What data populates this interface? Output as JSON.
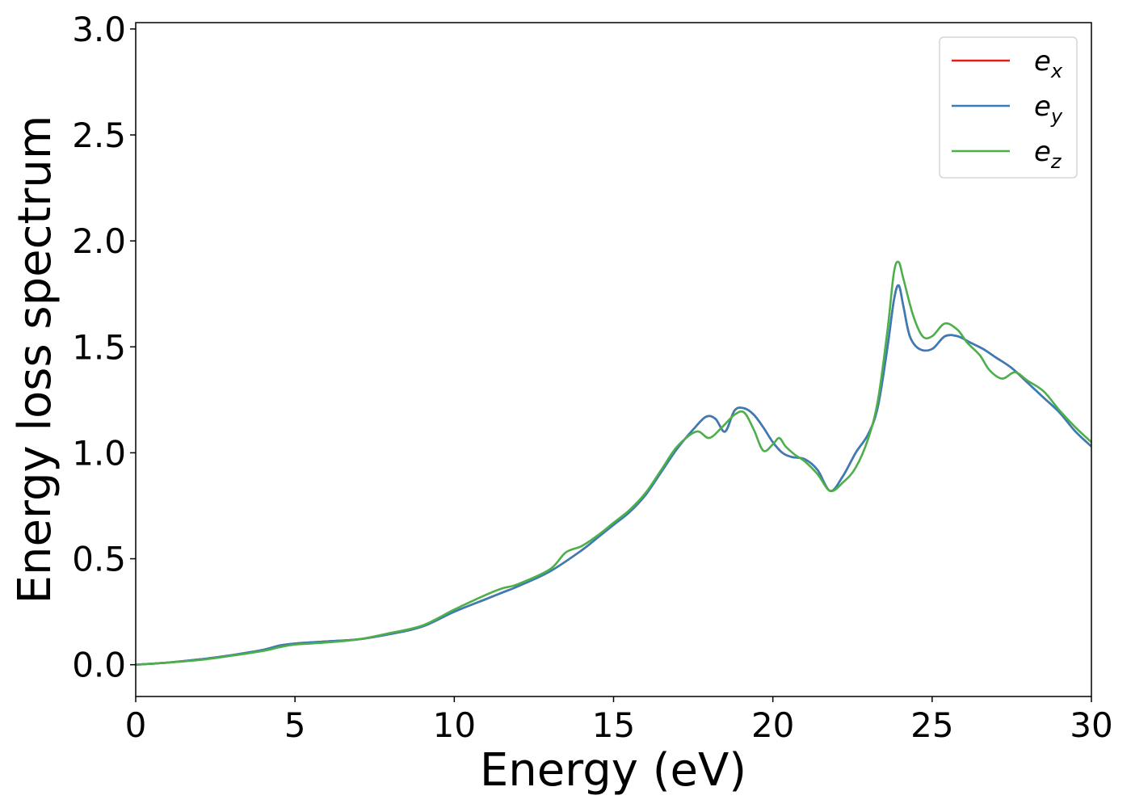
{
  "chart_data": {
    "type": "line",
    "title": "",
    "xlabel": "Energy (eV)",
    "ylabel": "Energy loss spectrum",
    "xlim": [
      0,
      30
    ],
    "ylim": [
      -0.15,
      3.03
    ],
    "xticks": [
      "0",
      "5",
      "10",
      "15",
      "20",
      "25",
      "30"
    ],
    "yticks": [
      "0.0",
      "0.5",
      "1.0",
      "1.5",
      "2.0",
      "2.5",
      "3.0"
    ],
    "grid": false,
    "legend_position": "top-right",
    "series": [
      {
        "name": "e_x",
        "legend": {
          "base": "e",
          "sub": "x"
        },
        "color": "#e41a1c",
        "x": [
          0,
          1,
          2,
          3,
          4,
          4.5,
          5,
          6,
          7,
          8,
          9,
          10,
          11,
          11.5,
          12,
          13,
          14,
          14.5,
          15,
          15.5,
          16,
          16.5,
          17,
          17.5,
          17.9,
          18.2,
          18.5,
          18.8,
          19.1,
          19.4,
          19.7,
          20,
          20.3,
          20.6,
          21,
          21.4,
          21.8,
          22.2,
          22.6,
          23,
          23.3,
          23.6,
          23.8,
          23.95,
          24.1,
          24.3,
          24.6,
          25,
          25.4,
          25.8,
          26.2,
          26.6,
          27,
          27.5,
          28,
          28.5,
          29,
          29.5,
          30
        ],
        "y": [
          0,
          0.01,
          0.025,
          0.045,
          0.07,
          0.09,
          0.1,
          0.11,
          0.12,
          0.145,
          0.18,
          0.25,
          0.31,
          0.34,
          0.37,
          0.44,
          0.54,
          0.6,
          0.66,
          0.72,
          0.8,
          0.91,
          1.02,
          1.11,
          1.17,
          1.16,
          1.1,
          1.2,
          1.21,
          1.18,
          1.12,
          1.05,
          1.0,
          0.98,
          0.97,
          0.92,
          0.82,
          0.89,
          1.0,
          1.09,
          1.22,
          1.5,
          1.72,
          1.79,
          1.69,
          1.55,
          1.49,
          1.49,
          1.55,
          1.55,
          1.52,
          1.49,
          1.45,
          1.4,
          1.33,
          1.26,
          1.19,
          1.1,
          1.03
        ]
      },
      {
        "name": "e_y",
        "legend": {
          "base": "e",
          "sub": "y"
        },
        "color": "#377eb8",
        "x": [
          0,
          1,
          2,
          3,
          4,
          4.5,
          5,
          6,
          7,
          8,
          9,
          10,
          11,
          11.5,
          12,
          13,
          14,
          14.5,
          15,
          15.5,
          16,
          16.5,
          17,
          17.5,
          17.9,
          18.2,
          18.5,
          18.8,
          19.1,
          19.4,
          19.7,
          20,
          20.3,
          20.6,
          21,
          21.4,
          21.8,
          22.2,
          22.6,
          23,
          23.3,
          23.6,
          23.8,
          23.95,
          24.1,
          24.3,
          24.6,
          25,
          25.4,
          25.8,
          26.2,
          26.6,
          27,
          27.5,
          28,
          28.5,
          29,
          29.5,
          30
        ],
        "y": [
          0,
          0.01,
          0.025,
          0.045,
          0.07,
          0.09,
          0.1,
          0.11,
          0.12,
          0.145,
          0.18,
          0.25,
          0.31,
          0.34,
          0.37,
          0.44,
          0.54,
          0.6,
          0.66,
          0.72,
          0.8,
          0.91,
          1.02,
          1.11,
          1.17,
          1.16,
          1.1,
          1.2,
          1.21,
          1.18,
          1.12,
          1.05,
          1.0,
          0.98,
          0.97,
          0.92,
          0.82,
          0.89,
          1.0,
          1.09,
          1.22,
          1.5,
          1.72,
          1.79,
          1.69,
          1.55,
          1.49,
          1.49,
          1.55,
          1.55,
          1.52,
          1.49,
          1.45,
          1.4,
          1.33,
          1.26,
          1.19,
          1.1,
          1.03
        ]
      },
      {
        "name": "e_z",
        "legend": {
          "base": "e",
          "sub": "z"
        },
        "color": "#4daf4a",
        "x": [
          0,
          1,
          2,
          3,
          4,
          4.5,
          5,
          6,
          7,
          8,
          9,
          10,
          11,
          11.5,
          12,
          13,
          13.5,
          14,
          14.5,
          15,
          15.5,
          16,
          16.5,
          17,
          17.6,
          18,
          18.4,
          18.8,
          19.1,
          19.4,
          19.7,
          20,
          20.2,
          20.4,
          20.7,
          21,
          21.4,
          21.8,
          22.2,
          22.6,
          23,
          23.3,
          23.6,
          23.8,
          23.95,
          24.1,
          24.4,
          24.7,
          25,
          25.4,
          25.8,
          26.1,
          26.5,
          26.8,
          27.2,
          27.6,
          28,
          28.5,
          29,
          29.5,
          30
        ],
        "y": [
          0,
          0.01,
          0.022,
          0.042,
          0.065,
          0.082,
          0.095,
          0.105,
          0.12,
          0.15,
          0.185,
          0.26,
          0.33,
          0.36,
          0.38,
          0.45,
          0.53,
          0.56,
          0.61,
          0.67,
          0.73,
          0.81,
          0.92,
          1.03,
          1.1,
          1.07,
          1.12,
          1.18,
          1.19,
          1.11,
          1.01,
          1.04,
          1.07,
          1.03,
          0.99,
          0.96,
          0.9,
          0.82,
          0.86,
          0.93,
          1.07,
          1.25,
          1.58,
          1.85,
          1.9,
          1.82,
          1.65,
          1.55,
          1.55,
          1.61,
          1.58,
          1.52,
          1.46,
          1.39,
          1.35,
          1.38,
          1.34,
          1.29,
          1.2,
          1.12,
          1.05
        ]
      }
    ]
  }
}
